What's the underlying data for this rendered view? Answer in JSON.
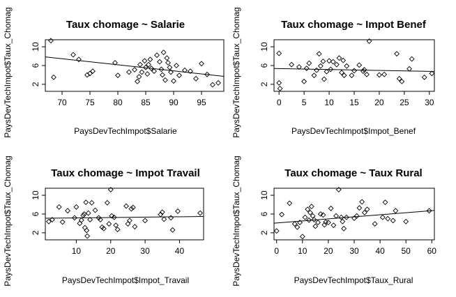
{
  "chart_data": [
    {
      "type": "scatter",
      "title": "Taux chomage ~ Salarie",
      "xlabel": "PaysDevTechImpot$Salarie",
      "ylabel": "PaysDevTechImpot$Taux_Chomag",
      "xlim": [
        67,
        99
      ],
      "ylim": [
        0.5,
        11.5
      ],
      "xticks": [
        70,
        75,
        80,
        85,
        90,
        95
      ],
      "yticks": [
        2,
        6,
        10
      ],
      "points": [
        [
          68,
          11.3
        ],
        [
          68.5,
          3.5
        ],
        [
          72,
          8.3
        ],
        [
          73,
          7.3
        ],
        [
          74.5,
          4
        ],
        [
          75,
          4.3
        ],
        [
          75.5,
          4.8
        ],
        [
          79.5,
          6.6
        ],
        [
          80,
          3.9
        ],
        [
          82,
          4.6
        ],
        [
          83,
          5.1
        ],
        [
          83.5,
          2.6
        ],
        [
          83.8,
          3.6
        ],
        [
          84,
          6.2
        ],
        [
          84.3,
          4.6
        ],
        [
          84.8,
          7
        ],
        [
          85,
          5.6
        ],
        [
          85.3,
          4.2
        ],
        [
          85.5,
          6.2
        ],
        [
          85.8,
          7.3
        ],
        [
          86,
          5.4
        ],
        [
          86.5,
          4.8
        ],
        [
          87,
          8.2
        ],
        [
          87.5,
          6.8
        ],
        [
          87.8,
          5.2
        ],
        [
          88,
          4
        ],
        [
          88.2,
          8.8
        ],
        [
          88.5,
          2.9
        ],
        [
          88.8,
          7.6
        ],
        [
          89,
          6.6
        ],
        [
          89.3,
          5.6
        ],
        [
          89.5,
          4.6
        ],
        [
          90,
          2.7
        ],
        [
          90.5,
          6
        ],
        [
          91,
          3.9
        ],
        [
          92,
          5
        ],
        [
          93,
          4.8
        ],
        [
          94,
          3.2
        ],
        [
          95,
          6.4
        ],
        [
          96,
          4.1
        ],
        [
          97,
          1.9
        ],
        [
          98,
          2.3
        ]
      ],
      "regression": {
        "intercept": 16.5,
        "slope": -0.1293
      }
    },
    {
      "type": "scatter",
      "title": "Taux chomage ~ Impot Benef",
      "xlabel": "PaysDevTechImpot$Impot_Benef",
      "ylabel": "PaysDevTechImpot$Taux_Chomag",
      "xlim": [
        -1,
        31
      ],
      "ylim": [
        0.5,
        11.5
      ],
      "xticks": [
        0,
        5,
        10,
        15,
        20,
        25,
        30
      ],
      "yticks": [
        2,
        6,
        10
      ],
      "points": [
        [
          0,
          8.6
        ],
        [
          0,
          2.3
        ],
        [
          0.2,
          1.1
        ],
        [
          2.5,
          6.2
        ],
        [
          4,
          5.7
        ],
        [
          5,
          2.6
        ],
        [
          5.5,
          5.4
        ],
        [
          6,
          6.5
        ],
        [
          7,
          3.9
        ],
        [
          7.5,
          5
        ],
        [
          8,
          8.5
        ],
        [
          8.3,
          5.9
        ],
        [
          8.8,
          6.9
        ],
        [
          9,
          3.1
        ],
        [
          9.5,
          4.7
        ],
        [
          10,
          7
        ],
        [
          10.3,
          5.2
        ],
        [
          10.8,
          6.8
        ],
        [
          11.5,
          6.2
        ],
        [
          12,
          7.6
        ],
        [
          12.5,
          4.5
        ],
        [
          12.8,
          7.1
        ],
        [
          13,
          3.9
        ],
        [
          13.5,
          5.9
        ],
        [
          14.5,
          3.9
        ],
        [
          15,
          4.9
        ],
        [
          16,
          6.1
        ],
        [
          16.8,
          4.8
        ],
        [
          17,
          5.1
        ],
        [
          17.5,
          4.1
        ],
        [
          18,
          11.2
        ],
        [
          20,
          4
        ],
        [
          21,
          4.1
        ],
        [
          23.5,
          8.5
        ],
        [
          24,
          3.2
        ],
        [
          24.5,
          2.6
        ],
        [
          26,
          5.3
        ],
        [
          26.5,
          7.4
        ],
        [
          29,
          3.5
        ],
        [
          30.5,
          4.3
        ]
      ],
      "regression": {
        "intercept": 5.35,
        "slope": -0.02
      }
    },
    {
      "type": "scatter",
      "title": "Taux chomage ~ Impot Travail",
      "xlabel": "PaysDevTechImpot$Impot_Travail",
      "ylabel": "PaysDevTechImpot$Taux_Chomag",
      "xlim": [
        1,
        47
      ],
      "ylim": [
        0.5,
        11.5
      ],
      "xticks": [
        10,
        20,
        30,
        40
      ],
      "yticks": [
        2,
        6,
        10
      ],
      "points": [
        [
          2,
          4.4
        ],
        [
          3,
          4.8
        ],
        [
          5,
          7.5
        ],
        [
          6,
          4.3
        ],
        [
          7.5,
          6.7
        ],
        [
          9.5,
          5.2
        ],
        [
          10,
          7.5
        ],
        [
          11,
          4
        ],
        [
          11.5,
          4.7
        ],
        [
          12,
          5.7
        ],
        [
          12.3,
          6
        ],
        [
          12.5,
          3.1
        ],
        [
          12.8,
          8.5
        ],
        [
          13,
          2.5
        ],
        [
          13.2,
          1.3
        ],
        [
          13.5,
          6.2
        ],
        [
          14,
          4.8
        ],
        [
          14.5,
          8.4
        ],
        [
          15.5,
          6.8
        ],
        [
          16.5,
          5.2
        ],
        [
          17,
          4.8
        ],
        [
          17.5,
          3.2
        ],
        [
          18,
          2.9
        ],
        [
          19,
          8.4
        ],
        [
          19.5,
          3.9
        ],
        [
          20,
          11.2
        ],
        [
          20.3,
          5.6
        ],
        [
          21,
          5.3
        ],
        [
          21.5,
          3.6
        ],
        [
          22,
          2.7
        ],
        [
          24.5,
          7.7
        ],
        [
          25,
          3.9
        ],
        [
          25.5,
          4.6
        ],
        [
          26,
          7.1
        ],
        [
          26.5,
          7.4
        ],
        [
          27,
          3.3
        ],
        [
          30,
          4.6
        ],
        [
          34.5,
          5.9
        ],
        [
          35,
          6.4
        ],
        [
          35.5,
          4.9
        ],
        [
          37.5,
          5.2
        ],
        [
          38,
          2.6
        ],
        [
          39.5,
          6.6
        ],
        [
          46,
          6.2
        ]
      ],
      "regression": {
        "intercept": 5.1,
        "slope": 0.008
      }
    },
    {
      "type": "scatter",
      "title": "Taux chomage ~ Taux Rural",
      "xlabel": "PaysDevTechImpot$Taux_Rural",
      "ylabel": "PaysDevTechImpot$Taux_Chomag",
      "xlim": [
        -1,
        61
      ],
      "ylim": [
        0.5,
        11.5
      ],
      "xticks": [
        0,
        10,
        20,
        30,
        40,
        50,
        60
      ],
      "yticks": [
        2,
        6,
        10
      ],
      "points": [
        [
          0,
          2.4
        ],
        [
          2,
          5.9
        ],
        [
          5,
          8.3
        ],
        [
          7,
          3.9
        ],
        [
          8,
          3.2
        ],
        [
          9,
          4.2
        ],
        [
          10,
          1.2
        ],
        [
          11,
          5.3
        ],
        [
          12,
          7
        ],
        [
          12.5,
          4.7
        ],
        [
          13,
          6.3
        ],
        [
          13.5,
          7.6
        ],
        [
          14,
          5.6
        ],
        [
          14.5,
          4.8
        ],
        [
          15,
          3.4
        ],
        [
          16,
          4.2
        ],
        [
          17,
          6
        ],
        [
          18,
          5.8
        ],
        [
          18.5,
          3.7
        ],
        [
          19,
          4.3
        ],
        [
          20,
          4.2
        ],
        [
          21,
          7.2
        ],
        [
          22,
          3.6
        ],
        [
          23,
          5.6
        ],
        [
          24,
          11.2
        ],
        [
          25,
          5.3
        ],
        [
          25.5,
          4.4
        ],
        [
          26,
          2.9
        ],
        [
          27,
          5.3
        ],
        [
          30,
          5.1
        ],
        [
          31,
          5.6
        ],
        [
          32,
          7.3
        ],
        [
          33,
          8.6
        ],
        [
          34,
          6.3
        ],
        [
          35,
          7
        ],
        [
          38,
          3.9
        ],
        [
          41,
          5.3
        ],
        [
          42,
          8.5
        ],
        [
          43,
          5
        ],
        [
          45,
          4.6
        ],
        [
          46,
          6.7
        ],
        [
          50,
          4.4
        ],
        [
          59,
          6.7
        ]
      ],
      "regression": {
        "intercept": 4.1,
        "slope": 0.0435
      }
    }
  ]
}
